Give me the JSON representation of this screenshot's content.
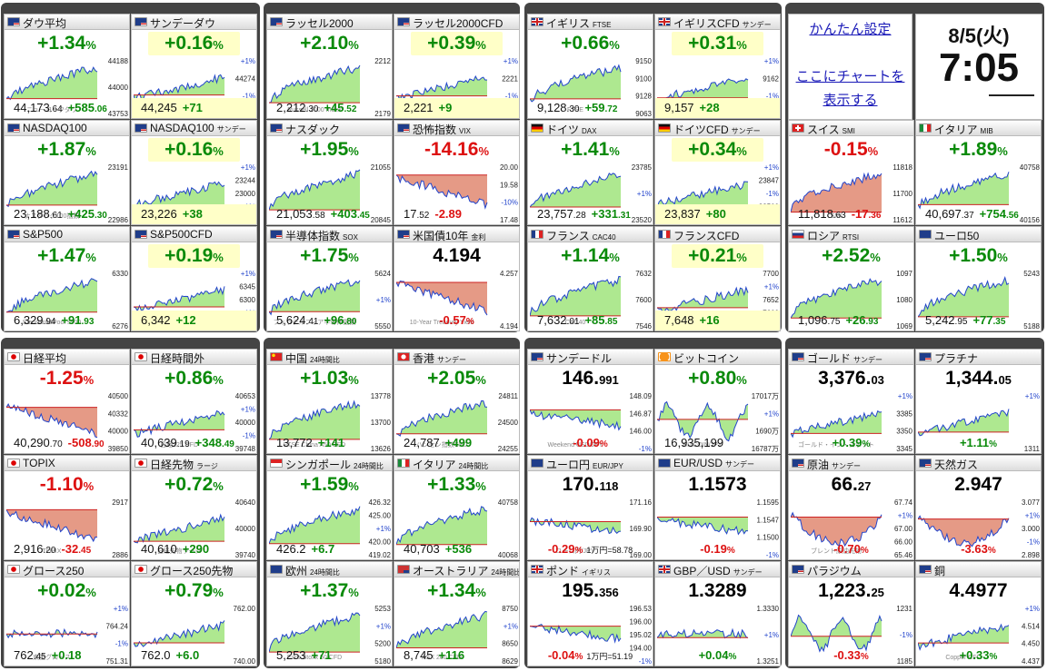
{
  "settings": {
    "easy_setting": "かんたん設定",
    "chart_line1": "ここにチャートを",
    "chart_line2": "表示する"
  },
  "datetime": {
    "date": "8/5(火)",
    "time": "7:05"
  },
  "tiles": [
    {
      "id": "dow",
      "flag": "us",
      "title": "ダウ平均",
      "sub": "",
      "chg": "+1.34",
      "pct": "%",
      "dir": "pos",
      "hl": false,
      "cur": "44,173",
      "curdec": ".64",
      "diff": "+585",
      "diffdec": ".06",
      "labels": [
        "44188",
        "44000",
        "43753"
      ],
      "ref": "",
      "trend": "up",
      "chart_text": "ニューヨークダウ"
    },
    {
      "id": "dow_sun",
      "flag": "us",
      "title": "サンデーダウ",
      "sub": "",
      "chg": "+0.16",
      "pct": "%",
      "dir": "pos",
      "hl": true,
      "cur": "44,245",
      "curdec": "",
      "diff": "+71",
      "diffdec": "",
      "labels": [
        "+1%",
        "44274",
        "-1%",
        "43507"
      ],
      "ref": "",
      "trend": "upflat",
      "chart_text": "ダウ平均 CFD"
    },
    {
      "id": "rus",
      "flag": "us",
      "title": "ラッセル2000",
      "sub": "",
      "chg": "+2.10",
      "pct": "%",
      "dir": "pos",
      "hl": false,
      "cur": "2,212",
      "curdec": ".30",
      "diff": "+45",
      "diffdec": ".52",
      "labels": [
        "2212",
        "2179"
      ],
      "ref": "",
      "trend": "up",
      "chart_text": "Russell 2000 Index"
    },
    {
      "id": "rus_cfd",
      "flag": "us",
      "title": "ラッセル2000CFD",
      "sub": "",
      "chg": "+0.39",
      "pct": "%",
      "dir": "pos",
      "hl": true,
      "cur": "2,221",
      "curdec": "",
      "diff": "+9",
      "diffdec": "",
      "labels": [
        "+1%",
        "2221",
        "-1%",
        "2160"
      ],
      "ref": "",
      "trend": "upflat",
      "chart_text": "Russell 2000 CFD"
    },
    {
      "id": "ftse",
      "flag": "uk",
      "title": "イギリス",
      "sub": "FTSE",
      "chg": "+0.66",
      "pct": "%",
      "dir": "pos",
      "hl": false,
      "cur": "9,128",
      "curdec": ".30",
      "diff": "+59",
      "diffdec": ".72",
      "labels": [
        "9150",
        "9100",
        "9128",
        "9063"
      ],
      "ref": "",
      "trend": "up",
      "chart_text": "FTSE"
    },
    {
      "id": "ftse_cfd",
      "flag": "uk",
      "title": "イギリスCFD",
      "sub": "サンデー",
      "chg": "+0.31",
      "pct": "%",
      "dir": "pos",
      "hl": true,
      "cur": "9,157",
      "curdec": "",
      "diff": "+28",
      "diffdec": "",
      "labels": [
        "+1%",
        "9162",
        "-1%",
        "9069"
      ],
      "ref": "",
      "trend": "upflat",
      "chart_text": ""
    },
    {
      "id": "ndq",
      "flag": "us",
      "title": "NASDAQ100",
      "sub": "",
      "chg": "+1.87",
      "pct": "%",
      "dir": "pos",
      "hl": false,
      "cur": "23,188",
      "curdec": ".61",
      "diff": "+425",
      "diffdec": ".30",
      "labels": [
        "23191",
        "22986"
      ],
      "ref": "",
      "trend": "up",
      "chart_text": "ナスダック100指数"
    },
    {
      "id": "ndq_sun",
      "flag": "us",
      "title": "NASDAQ100",
      "sub": "サンデー",
      "chg": "+0.16",
      "pct": "%",
      "dir": "pos",
      "hl": true,
      "cur": "23,226",
      "curdec": "",
      "diff": "+38",
      "diffdec": "",
      "labels": [
        "+1%",
        "23244",
        "23000",
        "-1%",
        "22705"
      ],
      "ref": "",
      "trend": "upflat",
      "chart_text": "NASDAQ 100 CFD"
    },
    {
      "id": "nasdaq",
      "flag": "us",
      "title": "ナスダック",
      "sub": "",
      "chg": "+1.95",
      "pct": "%",
      "dir": "pos",
      "hl": false,
      "cur": "21,053",
      "curdec": ".58",
      "diff": "+403",
      "diffdec": ".45",
      "labels": [
        "21055",
        "20845"
      ],
      "ref": "",
      "trend": "up",
      "chart_text": ""
    },
    {
      "id": "vix",
      "flag": "us",
      "title": "恐怖指数",
      "sub": "VIX",
      "chg": "-14.16",
      "pct": "%",
      "dir": "neg",
      "hl": false,
      "cur": "17",
      "curdec": ".52",
      "diff": "-2.89",
      "diffdec": "",
      "labels": [
        "20.00",
        "19.58",
        "-10%",
        "17.48"
      ],
      "ref": "",
      "trend": "down",
      "chart_text": ""
    },
    {
      "id": "dax",
      "flag": "de",
      "title": "ドイツ",
      "sub": "DAX",
      "chg": "+1.41",
      "pct": "%",
      "dir": "pos",
      "hl": false,
      "cur": "23,757",
      "curdec": ".28",
      "diff": "+331",
      "diffdec": ".31",
      "labels": [
        "23785",
        "+1%",
        "23520"
      ],
      "ref": "",
      "trend": "up",
      "chart_text": ""
    },
    {
      "id": "dax_cfd",
      "flag": "de",
      "title": "ドイツCFD",
      "sub": "サンデー",
      "chg": "+0.34",
      "pct": "%",
      "dir": "pos",
      "hl": true,
      "cur": "23,837",
      "curdec": "",
      "diff": "+80",
      "diffdec": "",
      "labels": [
        "+1%",
        "23847",
        "-1%",
        "23500",
        "23401"
      ],
      "ref": "",
      "trend": "upflat",
      "chart_text": ""
    },
    {
      "id": "smi",
      "flag": "ch",
      "title": "スイス",
      "sub": "SMI",
      "chg": "-0.15",
      "pct": "%",
      "dir": "neg",
      "hl": false,
      "cur": "11,818",
      "curdec": ".63",
      "diff": "-17",
      "diffdec": ".36",
      "labels": [
        "11818",
        "11700",
        "11612"
      ],
      "ref": "",
      "trend": "up",
      "chart_text": "SMI"
    },
    {
      "id": "mib",
      "flag": "it",
      "title": "イタリア",
      "sub": "MIB",
      "chg": "+1.89",
      "pct": "%",
      "dir": "pos",
      "hl": false,
      "cur": "40,697",
      "curdec": ".37",
      "diff": "+754",
      "diffdec": ".56",
      "labels": [
        "40758",
        "40156"
      ],
      "ref": "",
      "trend": "up",
      "chart_text": ""
    },
    {
      "id": "sp",
      "flag": "us",
      "title": "S&P500",
      "sub": "",
      "chg": "+1.47",
      "pct": "%",
      "dir": "pos",
      "hl": false,
      "cur": "6,329",
      "curdec": ".94",
      "diff": "+91",
      "diffdec": ".93",
      "labels": [
        "6330",
        "6276"
      ],
      "ref": "",
      "trend": "up",
      "chart_text": "Standard&Poor's500"
    },
    {
      "id": "sp_cfd",
      "flag": "us",
      "title": "S&P500CFD",
      "sub": "",
      "chg": "+0.19",
      "pct": "%",
      "dir": "pos",
      "hl": true,
      "cur": "6,342",
      "curdec": "",
      "diff": "+12",
      "diffdec": "",
      "labels": [
        "+1%",
        "6345",
        "6300",
        "-1%",
        "6225"
      ],
      "ref": "",
      "trend": "upflat",
      "chart_text": "S&P 500 CFD"
    },
    {
      "id": "sox",
      "flag": "us",
      "title": "半導体指数",
      "sub": "SOX",
      "chg": "+1.75",
      "pct": "%",
      "dir": "pos",
      "hl": false,
      "cur": "5,624",
      "curdec": ".41",
      "diff": "+96",
      "diffdec": ".80",
      "labels": [
        "5624",
        "+1%",
        "5550"
      ],
      "ref": "",
      "trend": "up",
      "chart_text": "フィラデルフィア半導体指数"
    },
    {
      "id": "us10",
      "flag": "us",
      "title": "米国債10年",
      "sub": "金利",
      "chg": "4.194",
      "pct": "",
      "dir": "blk",
      "hl": false,
      "cur": "",
      "curdec": "",
      "diff": "-0.57",
      "diffdec": "%",
      "labels": [
        "4.257",
        "4.194"
      ],
      "ref": "",
      "trend": "down",
      "chart_text": "10-Year Treasury Yield"
    },
    {
      "id": "cac",
      "flag": "fr",
      "title": "フランス",
      "sub": "CAC40",
      "chg": "+1.14",
      "pct": "%",
      "dir": "pos",
      "hl": false,
      "cur": "7,632",
      "curdec": ".01",
      "diff": "+85",
      "diffdec": ".85",
      "labels": [
        "7632",
        "7600",
        "7546"
      ],
      "ref": "",
      "trend": "up",
      "chart_text": "CAC40"
    },
    {
      "id": "cac_cfd",
      "flag": "fr",
      "title": "フランスCFD",
      "sub": "",
      "chg": "+0.21",
      "pct": "%",
      "dir": "pos",
      "hl": true,
      "cur": "7,648",
      "curdec": "",
      "diff": "+16",
      "diffdec": "",
      "labels": [
        "7700",
        "+1%",
        "7652",
        "7600",
        "7544"
      ],
      "ref": "",
      "trend": "upflat",
      "chart_text": ""
    },
    {
      "id": "rtsi",
      "flag": "ru",
      "title": "ロシア",
      "sub": "RTSI",
      "chg": "+2.52",
      "pct": "%",
      "dir": "pos",
      "hl": false,
      "cur": "1,096",
      "curdec": ".75",
      "diff": "+26",
      "diffdec": ".93",
      "labels": [
        "1097",
        "1080",
        "1069"
      ],
      "ref": "",
      "trend": "up",
      "chart_text": ""
    },
    {
      "id": "euro50",
      "flag": "eu",
      "title": "ユーロ50",
      "sub": "",
      "chg": "+1.50",
      "pct": "%",
      "dir": "pos",
      "hl": false,
      "cur": "5,242",
      "curdec": ".95",
      "diff": "+77",
      "diffdec": ".35",
      "labels": [
        "5243",
        "5188"
      ],
      "ref": "",
      "trend": "up",
      "chart_text": ""
    },
    {
      "id": "nikkei",
      "flag": "jp",
      "title": "日経平均",
      "sub": "",
      "chg": "-1.25",
      "pct": "%",
      "dir": "neg",
      "hl": false,
      "cur": "40,290",
      "curdec": ".70",
      "diff": "-508",
      "diffdec": ".90",
      "labels": [
        "40500",
        "40332",
        "40000",
        "39850"
      ],
      "ref": "",
      "trend": "down",
      "chart_text": ""
    },
    {
      "id": "nikkei_after",
      "flag": "jp",
      "title": "日経時間外",
      "sub": "",
      "chg": "+0.86",
      "pct": "%",
      "dir": "pos",
      "hl": false,
      "cur": "40,639",
      "curdec": ".19",
      "diff": "+348",
      "diffdec": ".49",
      "labels": [
        "40653",
        "+1%",
        "40000",
        "-1%",
        "39748"
      ],
      "ref": "",
      "trend": "upflat",
      "chart_text": "日経225 CFD"
    },
    {
      "id": "china",
      "flag": "cn",
      "title": "中国",
      "sub": "24時間比",
      "chg": "+1.03",
      "pct": "%",
      "dir": "pos",
      "hl": false,
      "cur": "13,772",
      "curdec": "",
      "diff": "+141",
      "diffdec": "",
      "labels": [
        "13778",
        "13700",
        "13626"
      ],
      "ref": "",
      "trend": "up",
      "chart_text": "FTSE China A50 CFD"
    },
    {
      "id": "hk",
      "flag": "hk",
      "title": "香港",
      "sub": "サンデー",
      "chg": "+2.05",
      "pct": "%",
      "dir": "pos",
      "hl": false,
      "cur": "24,787",
      "curdec": "",
      "diff": "+499",
      "diffdec": "",
      "labels": [
        "24811",
        "24500",
        "24255"
      ],
      "ref": "",
      "trend": "up",
      "chart_text": "ハンセン指数CFD"
    },
    {
      "id": "usdjpy",
      "flag": "us",
      "title": "サンデードル",
      "sub": "",
      "chg": "146.",
      "pct": "991",
      "dir": "blk",
      "hl": false,
      "cur": "",
      "curdec": "",
      "diff": "-0.09",
      "diffdec": "%",
      "labels": [
        "148.09",
        "146.87",
        "146.00",
        "-1%"
      ],
      "ref": "",
      "trend": "downflat",
      "chart_text": "Weekend USD/JPY"
    },
    {
      "id": "btc",
      "flag": "btc",
      "title": "ビットコイン",
      "sub": "",
      "chg": "+0.80",
      "pct": "%",
      "dir": "pos",
      "hl": false,
      "cur": "16,935,199",
      "curdec": "",
      "diff": "",
      "diffdec": "",
      "labels": [
        "17017万",
        "+1%",
        "1690万",
        "16787万"
      ],
      "ref": "",
      "trend": "choppy",
      "chart_text": "BITCOIN/JPY"
    },
    {
      "id": "gold",
      "flag": "us",
      "title": "ゴールド",
      "sub": "サンデー",
      "chg": "3,376.",
      "pct": "03",
      "dir": "blk",
      "hl": false,
      "cur": "",
      "curdec": "",
      "diff": "+0.39",
      "diffdec": "%",
      "labels": [
        "+1%",
        "3385",
        "3350",
        "3345"
      ],
      "ref": "",
      "trend": "upflat",
      "chart_text": "ゴールド・イン・スポット"
    },
    {
      "id": "plat",
      "flag": "us",
      "title": "プラチナ",
      "sub": "",
      "chg": "1,344.",
      "pct": "05",
      "dir": "blk",
      "hl": false,
      "cur": "",
      "curdec": "",
      "diff": "+1.11",
      "diffdec": "%",
      "labels": [
        "+1%",
        "1311"
      ],
      "ref": "",
      "trend": "upflat",
      "chart_text": ""
    },
    {
      "id": "topix",
      "flag": "jp",
      "title": "TOPIX",
      "sub": "",
      "chg": "-1.10",
      "pct": "%",
      "dir": "neg",
      "hl": false,
      "cur": "2,916",
      "curdec": ".20",
      "diff": "-32",
      "diffdec": ".45",
      "labels": [
        "2917",
        "2886"
      ],
      "ref": "",
      "trend": "down",
      "chart_text": "TOPIX"
    },
    {
      "id": "nk_fut",
      "flag": "jp",
      "title": "日経先物",
      "sub": "ラージ",
      "chg": "+0.72",
      "pct": "%",
      "dir": "pos",
      "hl": false,
      "cur": "40,610",
      "curdec": "",
      "diff": "+290",
      "diffdec": "",
      "labels": [
        "40640",
        "40000",
        "39740"
      ],
      "ref": "",
      "trend": "upflat",
      "chart_text": "日経先物ラージ"
    },
    {
      "id": "sg",
      "flag": "sg",
      "title": "シンガポール",
      "sub": "24時間比",
      "chg": "+1.59",
      "pct": "%",
      "dir": "pos",
      "hl": false,
      "cur": "426.2",
      "curdec": "",
      "diff": "+6.7",
      "diffdec": "",
      "labels": [
        "426.32",
        "425.00",
        "+1%",
        "420.00",
        "419.02"
      ],
      "ref": "",
      "trend": "up",
      "chart_text": ""
    },
    {
      "id": "it24",
      "flag": "it",
      "title": "イタリア",
      "sub": "24時間比",
      "chg": "+1.33",
      "pct": "%",
      "dir": "pos",
      "hl": false,
      "cur": "40,703",
      "curdec": "",
      "diff": "+536",
      "diffdec": "",
      "labels": [
        "40758",
        "40068"
      ],
      "ref": "",
      "trend": "up",
      "chart_text": ""
    },
    {
      "id": "eurjpy",
      "flag": "eu",
      "title": "ユーロ円",
      "sub": "EUR/JPY",
      "chg": "170.",
      "pct": "118",
      "dir": "blk",
      "hl": false,
      "cur": "",
      "curdec": "",
      "diff": "-0.29",
      "diffdec": "%",
      "labels": [
        "171.16",
        "169.90",
        "169.00"
      ],
      "ref": "1万円=58.78",
      "trend": "downflat",
      "chart_text": "ユーロ円/JPY"
    },
    {
      "id": "eurusd",
      "flag": "eu",
      "title": "EUR/USD",
      "sub": "サンデー",
      "chg": "1.1573",
      "pct": "",
      "dir": "blk",
      "hl": false,
      "cur": "",
      "curdec": "",
      "diff": "-0.19",
      "diffdec": "%",
      "labels": [
        "1.1595",
        "1.1547",
        "1.1500",
        "-1%"
      ],
      "ref": "",
      "trend": "downflat",
      "chart_text": ""
    },
    {
      "id": "oil",
      "flag": "us",
      "title": "原油",
      "sub": "サンデー",
      "chg": "66.",
      "pct": "27",
      "dir": "blk",
      "hl": false,
      "cur": "",
      "curdec": "",
      "diff": "-0.70",
      "diffdec": "%",
      "labels": [
        "67.74",
        "+1%",
        "67.00",
        "66.00",
        "65.46"
      ],
      "ref": "",
      "trend": "vdown",
      "chart_text": "ブレント原油先物"
    },
    {
      "id": "gas",
      "flag": "us",
      "title": "天然ガス",
      "sub": "",
      "chg": "2.947",
      "pct": "",
      "dir": "blk",
      "hl": false,
      "cur": "",
      "curdec": "",
      "diff": "-3.63",
      "diffdec": "%",
      "labels": [
        "3.077",
        "+1%",
        "3.000",
        "-1%",
        "2.898"
      ],
      "ref": "",
      "trend": "vdown",
      "chart_text": ""
    },
    {
      "id": "g250",
      "flag": "jp",
      "title": "グロース250",
      "sub": "",
      "chg": "+0.02",
      "pct": "%",
      "dir": "pos",
      "hl": false,
      "cur": "762",
      "curdec": ".45",
      "diff": "+0.18",
      "diffdec": "",
      "labels": [
        "+1%",
        "764.24",
        "-1%",
        "751.31"
      ],
      "ref": "",
      "trend": "flat",
      "chart_text": "東証グロース"
    },
    {
      "id": "g250f",
      "flag": "jp",
      "title": "グロース250先物",
      "sub": "",
      "chg": "+0.79",
      "pct": "%",
      "dir": "pos",
      "hl": false,
      "cur": "762.0",
      "curdec": "",
      "diff": "+6.0",
      "diffdec": "",
      "labels": [
        "762.00",
        "740.00"
      ],
      "ref": "",
      "trend": "upflat",
      "chart_text": ""
    },
    {
      "id": "eu24",
      "flag": "eu",
      "title": "欧州",
      "sub": "24時間比",
      "chg": "+1.37",
      "pct": "%",
      "dir": "pos",
      "hl": false,
      "cur": "5,253",
      "curdec": "",
      "diff": "+71",
      "diffdec": "",
      "labels": [
        "5253",
        "+1%",
        "5200",
        "5180"
      ],
      "ref": "",
      "trend": "up",
      "chart_text": "Euro Stoxx 50 CFD"
    },
    {
      "id": "au",
      "flag": "au",
      "title": "オーストラリア",
      "sub": "24時間比",
      "chg": "+1.34",
      "pct": "%",
      "dir": "pos",
      "hl": false,
      "cur": "8,745",
      "curdec": "",
      "diff": "+116",
      "diffdec": "",
      "labels": [
        "8750",
        "+1%",
        "8650",
        "8629"
      ],
      "ref": "",
      "trend": "up",
      "chart_text": "ASX 200 CFD"
    },
    {
      "id": "gbpjpy",
      "flag": "uk",
      "title": "ポンド",
      "sub": "イギリス",
      "chg": "195.",
      "pct": "356",
      "dir": "blk",
      "hl": false,
      "cur": "",
      "curdec": "",
      "diff": "-0.04",
      "diffdec": "%",
      "labels": [
        "196.53",
        "196.00",
        "195.02",
        "194.00",
        "-1%"
      ],
      "ref": "1万円=51.19",
      "trend": "downflat",
      "chart_text": ""
    },
    {
      "id": "gbpusd",
      "flag": "uk",
      "title": "GBP／USD",
      "sub": "サンデー",
      "chg": "1.3289",
      "pct": "",
      "dir": "blk",
      "hl": false,
      "cur": "",
      "curdec": "",
      "diff": "+0.04",
      "diffdec": "%",
      "labels": [
        "1.3330",
        "+1%",
        "1.3251"
      ],
      "ref": "",
      "trend": "flat",
      "chart_text": ""
    },
    {
      "id": "pall",
      "flag": "us",
      "title": "パラジウム",
      "sub": "",
      "chg": "1,223.",
      "pct": "25",
      "dir": "blk",
      "hl": false,
      "cur": "",
      "curdec": "",
      "diff": "-0.33",
      "diffdec": "%",
      "labels": [
        "1231",
        "-1%",
        "1185"
      ],
      "ref": "",
      "trend": "choppy",
      "chart_text": ""
    },
    {
      "id": "copper",
      "flag": "us",
      "title": "銅",
      "sub": "",
      "chg": "4.4977",
      "pct": "",
      "dir": "blk",
      "hl": false,
      "cur": "",
      "curdec": "",
      "diff": "+0.33",
      "diffdec": "%",
      "labels": [
        "+1%",
        "4.514",
        "4.450",
        "4.437"
      ],
      "ref": "",
      "trend": "upflat",
      "chart_text": "Copper CFD"
    }
  ]
}
